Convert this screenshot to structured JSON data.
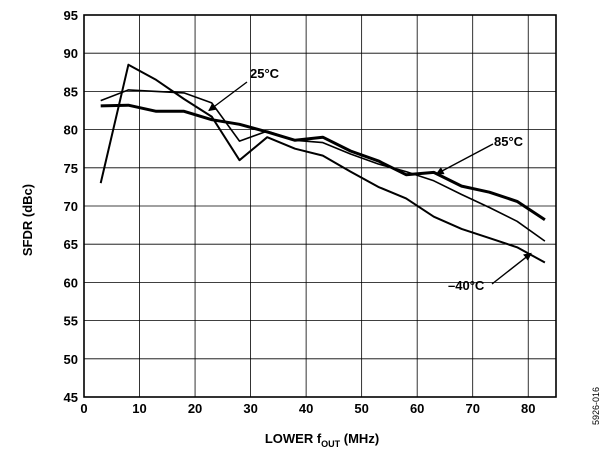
{
  "chart_data": {
    "type": "line",
    "xlabel_main": "LOWER f",
    "xlabel_sub": "OUT",
    "xlabel_tail": " (MHz)",
    "ylabel": "SFDR (dBc)",
    "xlim": [
      0,
      85
    ],
    "ylim": [
      45,
      95
    ],
    "x_ticks": [
      0,
      10,
      20,
      30,
      40,
      50,
      60,
      70,
      80
    ],
    "y_ticks": [
      45,
      50,
      55,
      60,
      65,
      70,
      75,
      80,
      85,
      90,
      95
    ],
    "grid": true,
    "series": [
      {
        "name": "25°C",
        "stroke_width": 1.6,
        "x": [
          3,
          8,
          13,
          18,
          23,
          28,
          33,
          38,
          43,
          48,
          53,
          58,
          63,
          68,
          73,
          78,
          83
        ],
        "y": [
          83.8,
          85.2,
          85.0,
          84.8,
          83.5,
          78.5,
          79.8,
          78.6,
          78.3,
          76.8,
          75.5,
          74.5,
          73.3,
          71.5,
          69.8,
          68.0,
          65.4
        ]
      },
      {
        "name": "85°C",
        "stroke_width": 3,
        "x": [
          3,
          8,
          13,
          18,
          23,
          28,
          33,
          38,
          43,
          48,
          53,
          58,
          63,
          68,
          73,
          78,
          83
        ],
        "y": [
          83.1,
          83.2,
          82.4,
          82.4,
          81.3,
          80.7,
          79.7,
          78.6,
          79.0,
          77.2,
          75.9,
          74.1,
          74.4,
          72.6,
          71.8,
          70.6,
          68.2
        ]
      },
      {
        "name": "−40°C",
        "stroke_width": 2,
        "x": [
          3,
          8,
          13,
          18,
          23,
          28,
          33,
          38,
          43,
          48,
          53,
          58,
          63,
          68,
          73,
          78,
          83
        ],
        "y": [
          73.0,
          88.5,
          86.5,
          84.0,
          81.7,
          76.0,
          79.0,
          77.5,
          76.6,
          74.5,
          72.5,
          71.0,
          68.6,
          67.0,
          65.8,
          64.6,
          62.6
        ]
      }
    ],
    "annotations": [
      {
        "text": "25°C",
        "pointer_x": 22.5,
        "pointer_y": 82.5
      },
      {
        "text": "85°C",
        "pointer_x": 63.5,
        "pointer_y": 74.2
      },
      {
        "text": "–40°C",
        "pointer_x": 80.5,
        "pointer_y": 63.8
      }
    ],
    "figure_id": "5926-016"
  }
}
